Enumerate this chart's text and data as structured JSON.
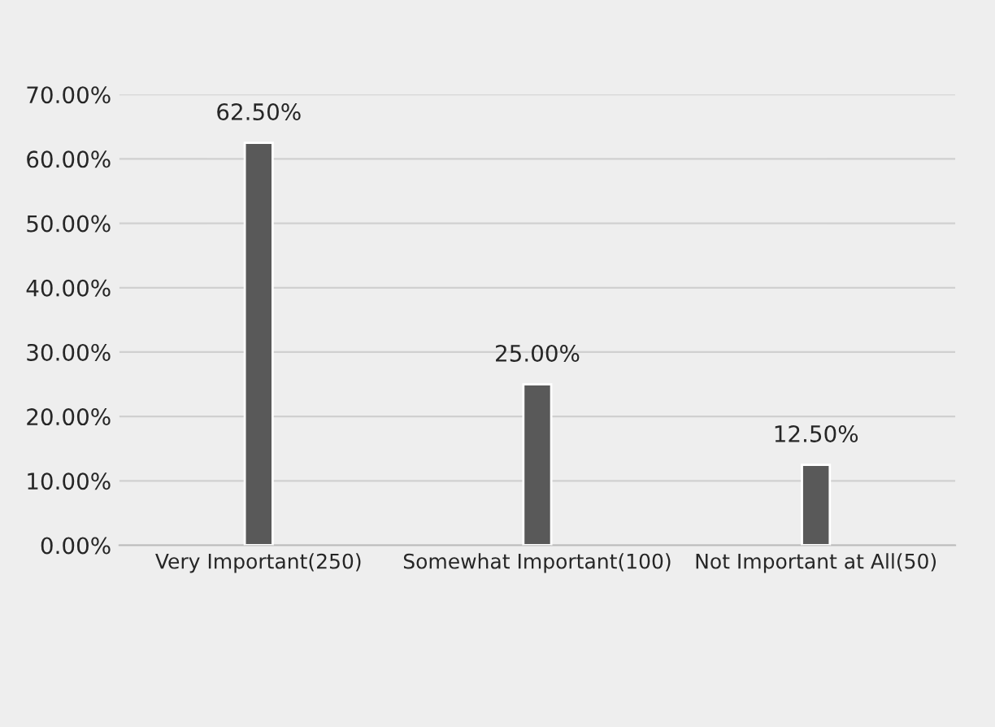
{
  "chart_data": {
    "type": "bar",
    "categories": [
      "Very Important(250)",
      "Somewhat Important(100)",
      "Not Important at All(50)"
    ],
    "values": [
      62.5,
      25.0,
      12.5
    ],
    "value_labels": [
      "62.50%",
      "25.00%",
      "12.50%"
    ],
    "color": "#595959",
    "ylim": [
      0,
      70
    ],
    "yticks": [
      {
        "value": 0,
        "label": "0.00%"
      },
      {
        "value": 10,
        "label": "10.00%"
      },
      {
        "value": 20,
        "label": "20.00%"
      },
      {
        "value": 30,
        "label": "30.00%"
      },
      {
        "value": 40,
        "label": "40.00%"
      },
      {
        "value": 50,
        "label": "50.00%"
      },
      {
        "value": 60,
        "label": "60.00%"
      },
      {
        "value": 70,
        "label": "70.00%"
      }
    ],
    "grid": "y"
  }
}
